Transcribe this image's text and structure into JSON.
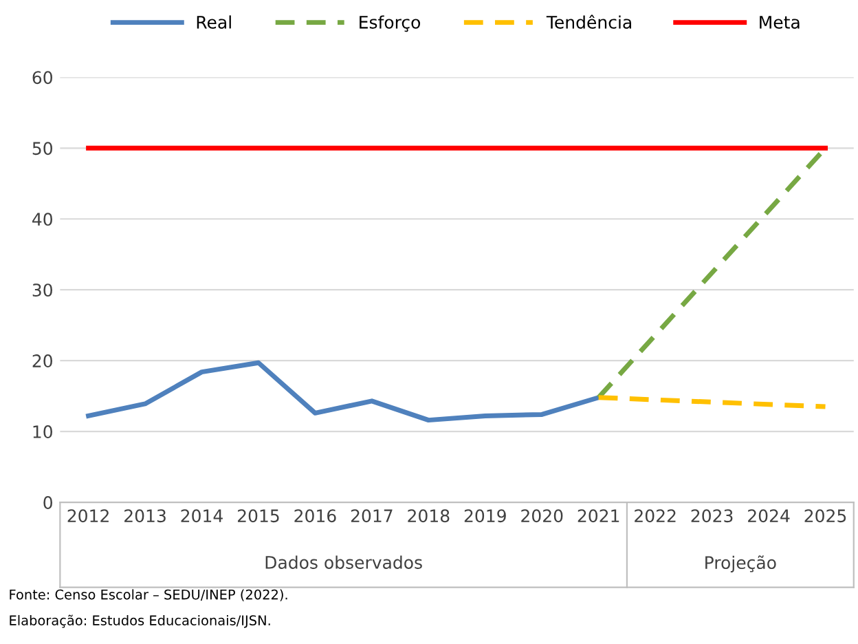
{
  "chart_data": {
    "type": "line",
    "categories": [
      "2012",
      "2013",
      "2014",
      "2015",
      "2016",
      "2017",
      "2018",
      "2019",
      "2020",
      "2021",
      "2022",
      "2023",
      "2024",
      "2025"
    ],
    "series": [
      {
        "name": "Real",
        "color": "#4f81bd",
        "line_style": "solid",
        "values": [
          12.2,
          13.9,
          18.4,
          19.7,
          12.6,
          14.3,
          11.6,
          12.2,
          12.4,
          14.8,
          null,
          null,
          null,
          null
        ]
      },
      {
        "name": "Esforço",
        "color": "#77a843",
        "line_style": "dashed",
        "values": [
          null,
          null,
          null,
          null,
          null,
          null,
          null,
          null,
          null,
          14.8,
          null,
          null,
          null,
          50
        ]
      },
      {
        "name": "Tendência",
        "color": "#ffc000",
        "line_style": "dashed",
        "values": [
          null,
          null,
          null,
          null,
          null,
          null,
          null,
          null,
          null,
          14.8,
          null,
          null,
          null,
          13.5
        ]
      },
      {
        "name": "Meta",
        "color": "#ff0000",
        "line_style": "solid",
        "values": [
          50,
          null,
          null,
          null,
          null,
          null,
          null,
          null,
          null,
          null,
          null,
          null,
          null,
          50
        ]
      }
    ],
    "ylim": [
      0,
      60
    ],
    "yticks": [
      0,
      10,
      20,
      30,
      40,
      50,
      60
    ],
    "grid": "y",
    "legend": "top",
    "marker": "none",
    "annotations": [
      "Dados observados",
      "Projeção",
      "Fonte: Censo Escolar – SEDU/INEP (2022).",
      "Elaboração: Estudos Educacionais/IJSN."
    ]
  }
}
